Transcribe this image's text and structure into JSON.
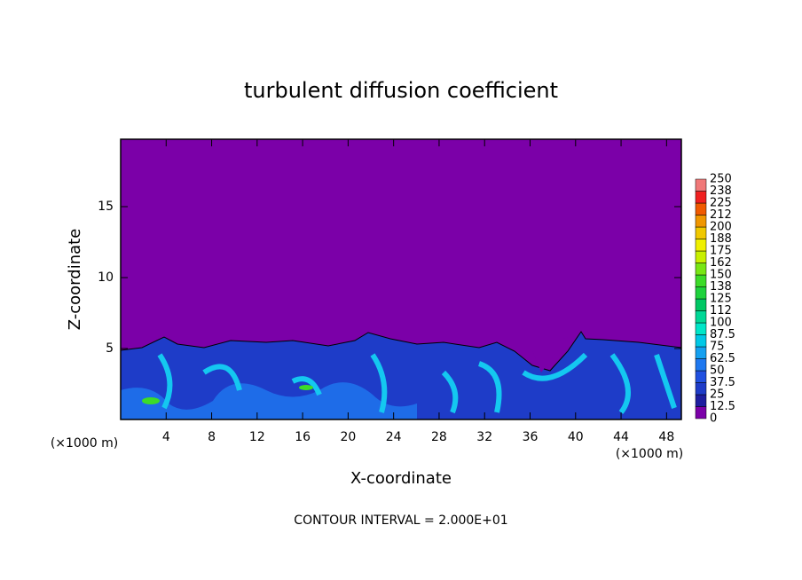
{
  "chart_data": {
    "type": "contour",
    "title": "turbulent diffusion coefficient",
    "xlabel": "X-coordinate",
    "ylabel": "Z-coordinate",
    "x_unit_labels": [
      "(×1000 m)",
      "(×1000 m)"
    ],
    "footer": "CONTOUR INTERVAL = 2.000E+01",
    "xlim": [
      0,
      49.3
    ],
    "xticks": [
      4,
      8,
      12,
      16,
      20,
      24,
      28,
      32,
      36,
      40,
      44,
      48
    ],
    "ylim": [
      0,
      19.75
    ],
    "yticks": [
      5,
      10,
      15
    ],
    "colorbar": {
      "clim": [
        0,
        250
      ],
      "ticks": [
        0,
        12.5,
        25,
        37.5,
        50,
        62.5,
        75,
        87.5,
        100,
        {
          "value": 112.5,
          "label": "112"
        },
        125,
        {
          "value": 137.5,
          "label": "138"
        },
        150,
        {
          "value": 162.5,
          "label": "162"
        },
        175,
        {
          "value": 187.5,
          "label": "188"
        },
        200,
        {
          "value": 212.5,
          "label": "212"
        },
        225,
        {
          "value": 237.5,
          "label": "238"
        },
        250
      ],
      "colors": [
        "#7b00a8",
        "#1e1ea0",
        "#1e3cc8",
        "#2050e0",
        "#1e78f0",
        "#14a0f0",
        "#00c8e6",
        "#00e6c8",
        "#00d896",
        "#00c864",
        "#1ed23c",
        "#3cdc28",
        "#78e614",
        "#c8f000",
        "#f0f000",
        "#f0c800",
        "#f09600",
        "#f05a00",
        "#f02020",
        "#f07878"
      ]
    }
  }
}
